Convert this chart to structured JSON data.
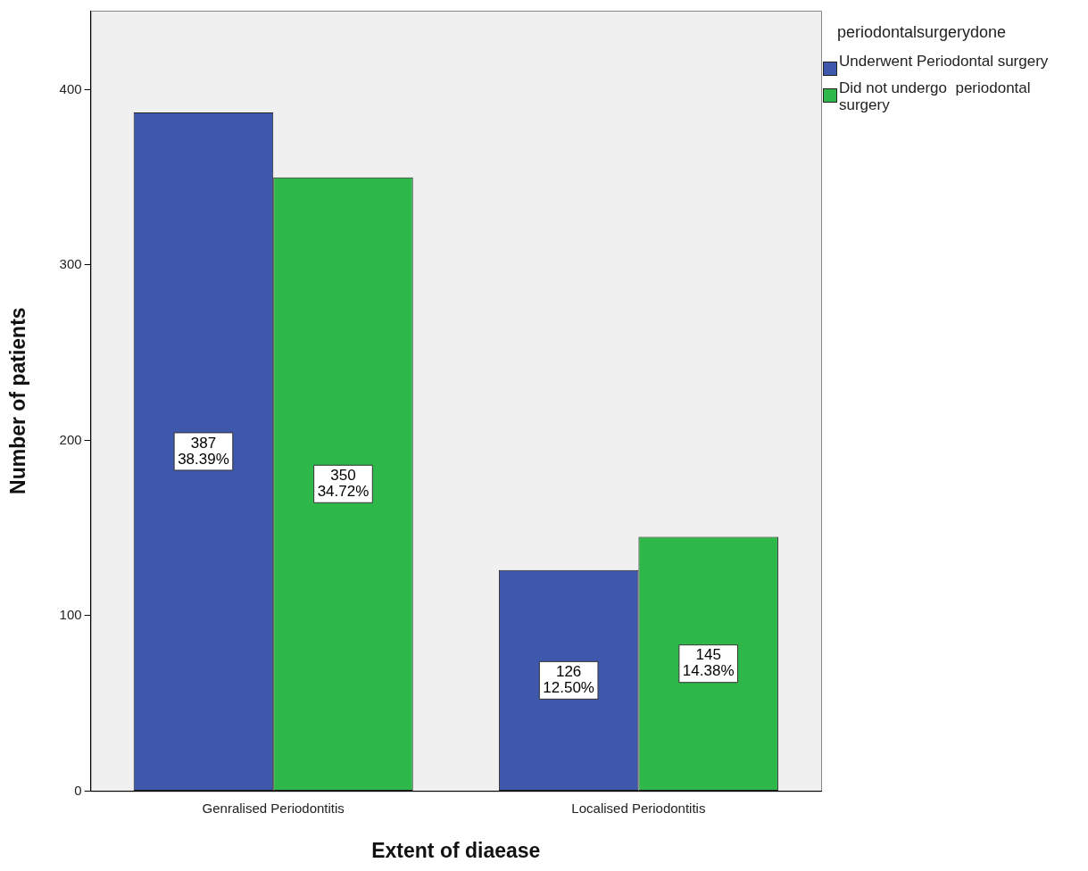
{
  "chart_data": {
    "type": "bar",
    "xlabel": "Extent of diaease",
    "ylabel": "Number of patients",
    "legend_title": "periodontalsurgerydone",
    "legend": "top right",
    "categories": [
      "Genralised Periodontitis",
      "Localised Periodontitis"
    ],
    "series": [
      {
        "name": "Underwent Periodontal surgery",
        "color": "#3e58ac",
        "values": [
          387,
          126
        ],
        "value_labels": [
          "387\n38.39%",
          "126\n12.50%"
        ]
      },
      {
        "name": "Did not undergo  periodontal surgery",
        "color": "#2eb84a",
        "values": [
          350,
          145
        ],
        "value_labels": [
          "350\n34.72%",
          "145\n14.38%"
        ]
      }
    ],
    "ylim": [
      0,
      445
    ],
    "yticks": [
      0,
      100,
      200,
      300,
      400
    ],
    "grid": false
  }
}
